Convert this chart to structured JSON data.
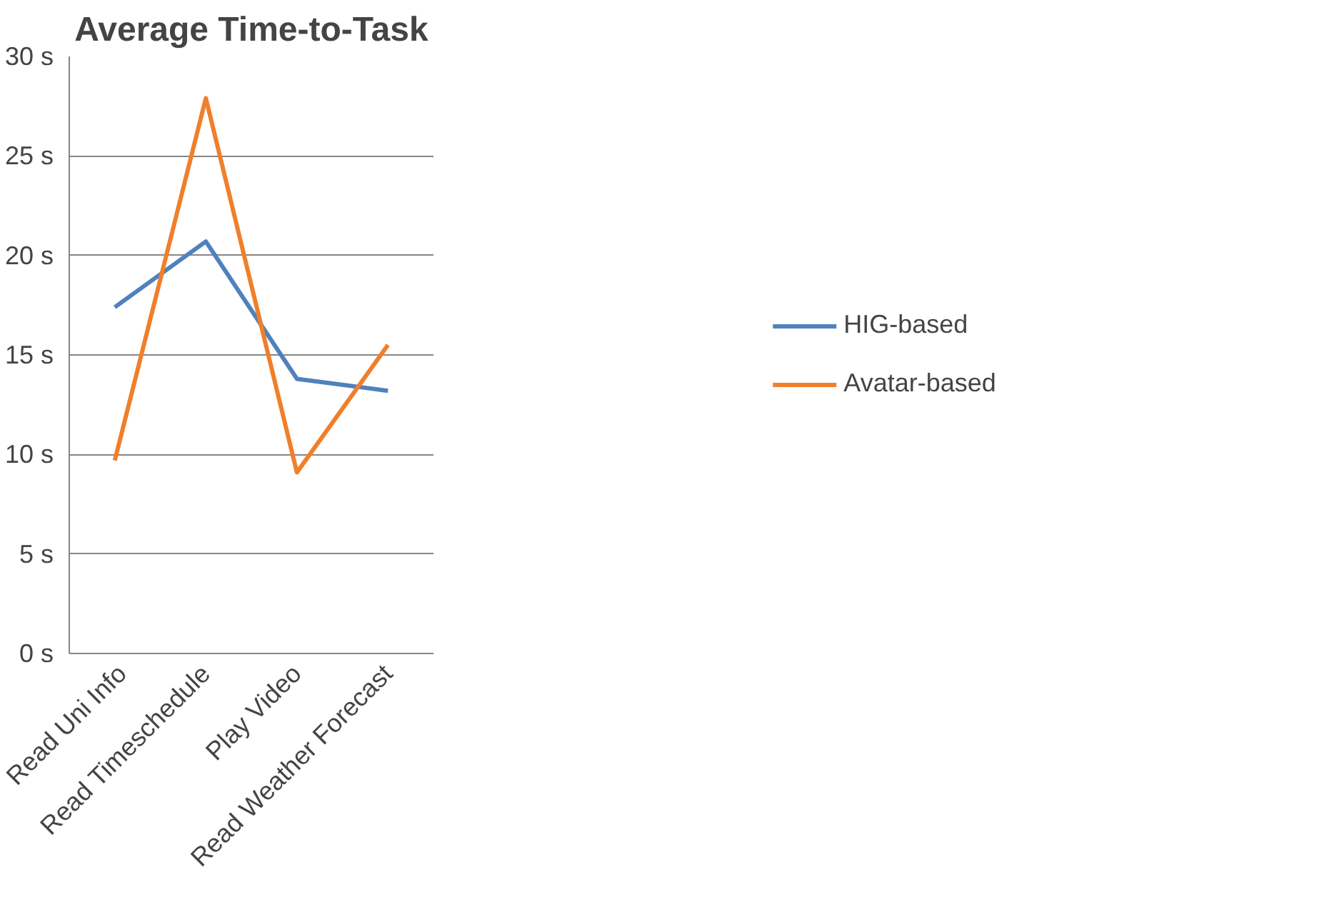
{
  "chart_data": {
    "type": "line",
    "title": "Average Time-to-Task",
    "categories": [
      "Read Uni Info",
      "Read Timeschedule",
      "Play Video",
      "Read Weather Forecast"
    ],
    "series": [
      {
        "name": "HIG-based",
        "color": "#4f81bd",
        "values": [
          17.4,
          20.7,
          13.8,
          13.2
        ]
      },
      {
        "name": "Avatar-based",
        "color": "#f07f2a",
        "values": [
          9.7,
          27.9,
          9.1,
          15.5
        ]
      }
    ],
    "ylim": [
      0,
      30
    ],
    "yticks": [
      {
        "value": 0,
        "label": "0 s"
      },
      {
        "value": 5,
        "label": "5 s"
      },
      {
        "value": 10,
        "label": "10 s"
      },
      {
        "value": 15,
        "label": "15 s"
      },
      {
        "value": 20,
        "label": "20 s"
      },
      {
        "value": 25,
        "label": "25 s"
      },
      {
        "value": 30,
        "label": "30 s"
      }
    ],
    "grid": "y",
    "legend": "right",
    "marker": "none"
  }
}
